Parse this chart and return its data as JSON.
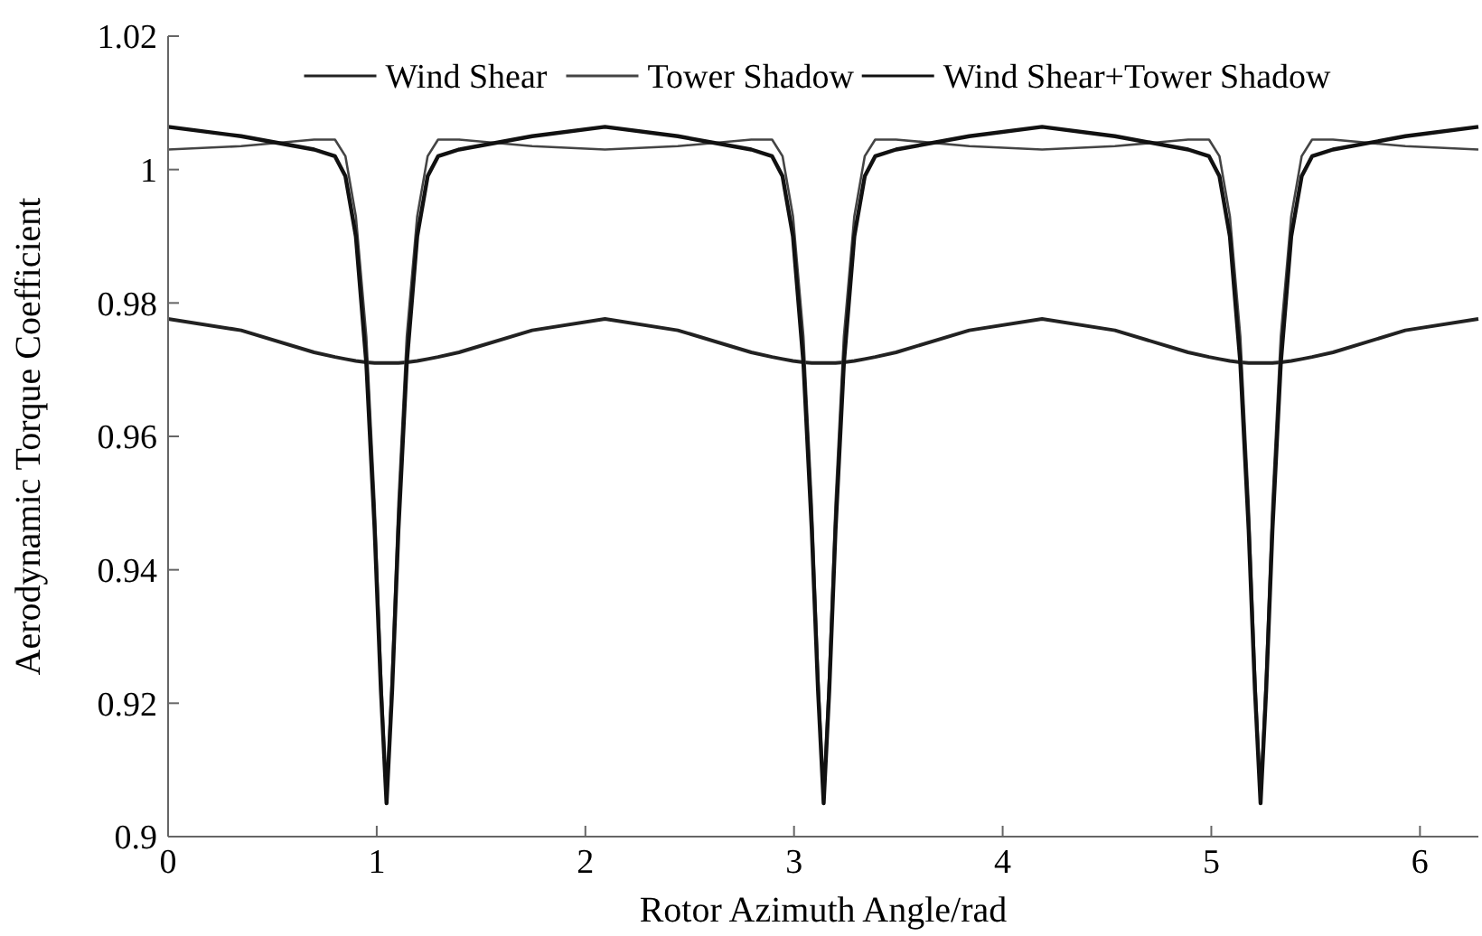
{
  "chart_data": {
    "type": "line",
    "xlabel": "Rotor Azimuth Angle/rad",
    "ylabel": "Aerodynamic Torque Coefficient",
    "x": [
      0,
      0.35,
      0.7,
      0.8,
      0.85,
      0.9,
      0.95,
      0.99,
      1.02,
      1.047,
      1.074,
      1.104,
      1.144,
      1.194,
      1.244,
      1.294,
      1.394,
      1.745,
      2.094,
      2.443,
      2.795,
      2.895,
      2.945,
      2.995,
      3.045,
      3.085,
      3.115,
      3.142,
      3.169,
      3.199,
      3.239,
      3.289,
      3.339,
      3.389,
      3.489,
      3.84,
      4.189,
      4.538,
      4.889,
      4.989,
      5.039,
      5.089,
      5.139,
      5.179,
      5.209,
      5.236,
      5.263,
      5.293,
      5.333,
      5.383,
      5.433,
      5.483,
      5.583,
      5.93,
      6.28
    ],
    "series": [
      {
        "name": "Wind Shear",
        "color": "#222222",
        "values": [
          0.9776,
          0.9759,
          0.9726,
          0.9719,
          0.9716,
          0.9713,
          0.9711,
          0.971,
          0.971,
          0.971,
          0.971,
          0.971,
          0.9711,
          0.9713,
          0.9716,
          0.9719,
          0.9726,
          0.9759,
          0.9776,
          0.9759,
          0.9726,
          0.9719,
          0.9716,
          0.9713,
          0.9711,
          0.971,
          0.971,
          0.971,
          0.971,
          0.971,
          0.9711,
          0.9713,
          0.9716,
          0.9719,
          0.9726,
          0.9759,
          0.9776,
          0.9759,
          0.9726,
          0.9719,
          0.9716,
          0.9713,
          0.9711,
          0.971,
          0.971,
          0.971,
          0.971,
          0.971,
          0.9711,
          0.9713,
          0.9716,
          0.9719,
          0.9726,
          0.9759,
          0.9776
        ]
      },
      {
        "name": "Tower Shadow",
        "color": "#444444",
        "values": [
          1.003,
          1.0035,
          1.0045,
          1.0045,
          1.002,
          0.993,
          0.975,
          0.95,
          0.925,
          0.906,
          0.925,
          0.95,
          0.975,
          0.993,
          1.002,
          1.0045,
          1.0045,
          1.0035,
          1.003,
          1.0035,
          1.0045,
          1.0045,
          1.002,
          0.993,
          0.975,
          0.95,
          0.925,
          0.906,
          0.925,
          0.95,
          0.975,
          0.993,
          1.002,
          1.0045,
          1.0045,
          1.0035,
          1.003,
          1.0035,
          1.0045,
          1.0045,
          1.002,
          0.993,
          0.975,
          0.95,
          0.925,
          0.906,
          0.925,
          0.95,
          0.975,
          0.993,
          1.002,
          1.0045,
          1.0045,
          1.0035,
          1.003
        ]
      },
      {
        "name": "Wind Shear+Tower Shadow",
        "color": "#111111",
        "values": [
          1.0064,
          1.005,
          1.003,
          1.002,
          0.999,
          0.99,
          0.971,
          0.946,
          0.922,
          0.905,
          0.922,
          0.946,
          0.971,
          0.99,
          0.999,
          1.002,
          1.003,
          1.005,
          1.0064,
          1.005,
          1.003,
          1.002,
          0.999,
          0.99,
          0.971,
          0.946,
          0.922,
          0.905,
          0.922,
          0.946,
          0.971,
          0.99,
          0.999,
          1.002,
          1.003,
          1.005,
          1.0064,
          1.005,
          1.003,
          1.002,
          0.999,
          0.99,
          0.971,
          0.946,
          0.922,
          0.905,
          0.922,
          0.946,
          0.971,
          0.99,
          0.999,
          1.002,
          1.003,
          1.005,
          1.0064
        ]
      }
    ],
    "xlim": [
      0,
      6.28
    ],
    "xticks": [
      0,
      1,
      2,
      3,
      4,
      5,
      6
    ],
    "ylim": [
      0.9,
      1.02
    ],
    "yticks": [
      0.9,
      0.92,
      0.94,
      0.96,
      0.98,
      1,
      1.02
    ],
    "legend": "top",
    "grid": false,
    "marker": "none",
    "line_style": "solid"
  }
}
